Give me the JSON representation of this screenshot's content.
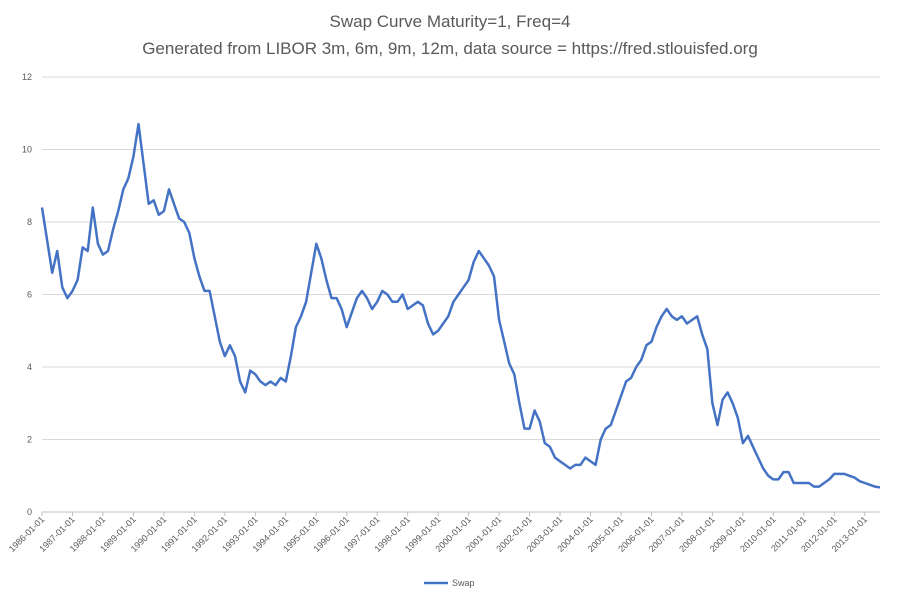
{
  "chart_data": {
    "type": "line",
    "title": "Swap Curve Maturity=1, Freq=4",
    "subtitle": "Generated from LIBOR 3m, 6m, 9m, 12m, data source = https://fred.stlouisfed.org",
    "xlabel": "",
    "ylabel": "",
    "ylim": [
      0,
      12
    ],
    "yticks": [
      0,
      2,
      4,
      6,
      8,
      10,
      12
    ],
    "x_ticks": [
      "1986-01-01",
      "1987-01-01",
      "1988-01-01",
      "1989-01-01",
      "1990-01-01",
      "1991-01-01",
      "1992-01-01",
      "1993-01-01",
      "1994-01-01",
      "1995-01-01",
      "1996-01-01",
      "1997-01-01",
      "1998-01-01",
      "1999-01-01",
      "2000-01-01",
      "2001-01-01",
      "2002-01-01",
      "2003-01-01",
      "2004-01-01",
      "2005-01-01",
      "2006-01-01",
      "2007-01-01",
      "2008-01-01",
      "2009-01-01",
      "2010-01-01",
      "2011-01-01",
      "2012-01-01",
      "2013-01-01"
    ],
    "xlim": [
      "1986-01-01",
      "2013-07-01"
    ],
    "grid": "horizontal",
    "legend_position": "bottom",
    "series": [
      {
        "name": "Swap",
        "color": "#4472C4",
        "points": [
          [
            "1986-01-01",
            8.4
          ],
          [
            "1986-03-01",
            7.5
          ],
          [
            "1986-05-01",
            6.6
          ],
          [
            "1986-07-01",
            7.2
          ],
          [
            "1986-09-01",
            6.2
          ],
          [
            "1986-11-01",
            5.9
          ],
          [
            "1987-01-01",
            6.1
          ],
          [
            "1987-03-01",
            6.4
          ],
          [
            "1987-05-01",
            7.3
          ],
          [
            "1987-07-01",
            7.2
          ],
          [
            "1987-09-01",
            8.4
          ],
          [
            "1987-11-01",
            7.4
          ],
          [
            "1988-01-01",
            7.1
          ],
          [
            "1988-03-01",
            7.2
          ],
          [
            "1988-05-01",
            7.8
          ],
          [
            "1988-07-01",
            8.3
          ],
          [
            "1988-09-01",
            8.9
          ],
          [
            "1988-11-01",
            9.2
          ],
          [
            "1989-01-01",
            9.8
          ],
          [
            "1989-03-01",
            10.7
          ],
          [
            "1989-05-01",
            9.6
          ],
          [
            "1989-07-01",
            8.5
          ],
          [
            "1989-09-01",
            8.6
          ],
          [
            "1989-11-01",
            8.2
          ],
          [
            "1990-01-01",
            8.3
          ],
          [
            "1990-03-01",
            8.9
          ],
          [
            "1990-05-01",
            8.5
          ],
          [
            "1990-07-01",
            8.1
          ],
          [
            "1990-09-01",
            8.0
          ],
          [
            "1990-11-01",
            7.7
          ],
          [
            "1991-01-01",
            7.0
          ],
          [
            "1991-03-01",
            6.5
          ],
          [
            "1991-05-01",
            6.1
          ],
          [
            "1991-07-01",
            6.1
          ],
          [
            "1991-09-01",
            5.4
          ],
          [
            "1991-11-01",
            4.7
          ],
          [
            "1992-01-01",
            4.3
          ],
          [
            "1992-03-01",
            4.6
          ],
          [
            "1992-05-01",
            4.3
          ],
          [
            "1992-07-01",
            3.6
          ],
          [
            "1992-09-01",
            3.3
          ],
          [
            "1992-11-01",
            3.9
          ],
          [
            "1993-01-01",
            3.8
          ],
          [
            "1993-03-01",
            3.6
          ],
          [
            "1993-05-01",
            3.5
          ],
          [
            "1993-07-01",
            3.6
          ],
          [
            "1993-09-01",
            3.5
          ],
          [
            "1993-11-01",
            3.7
          ],
          [
            "1994-01-01",
            3.6
          ],
          [
            "1994-03-01",
            4.3
          ],
          [
            "1994-05-01",
            5.1
          ],
          [
            "1994-07-01",
            5.4
          ],
          [
            "1994-09-01",
            5.8
          ],
          [
            "1994-11-01",
            6.6
          ],
          [
            "1995-01-01",
            7.4
          ],
          [
            "1995-03-01",
            7.0
          ],
          [
            "1995-05-01",
            6.4
          ],
          [
            "1995-07-01",
            5.9
          ],
          [
            "1995-09-01",
            5.9
          ],
          [
            "1995-11-01",
            5.6
          ],
          [
            "1996-01-01",
            5.1
          ],
          [
            "1996-03-01",
            5.5
          ],
          [
            "1996-05-01",
            5.9
          ],
          [
            "1996-07-01",
            6.1
          ],
          [
            "1996-09-01",
            5.9
          ],
          [
            "1996-11-01",
            5.6
          ],
          [
            "1997-01-01",
            5.8
          ],
          [
            "1997-03-01",
            6.1
          ],
          [
            "1997-05-01",
            6.0
          ],
          [
            "1997-07-01",
            5.8
          ],
          [
            "1997-09-01",
            5.8
          ],
          [
            "1997-11-01",
            6.0
          ],
          [
            "1998-01-01",
            5.6
          ],
          [
            "1998-03-01",
            5.7
          ],
          [
            "1998-05-01",
            5.8
          ],
          [
            "1998-07-01",
            5.7
          ],
          [
            "1998-09-01",
            5.2
          ],
          [
            "1998-11-01",
            4.9
          ],
          [
            "1999-01-01",
            5.0
          ],
          [
            "1999-03-01",
            5.2
          ],
          [
            "1999-05-01",
            5.4
          ],
          [
            "1999-07-01",
            5.8
          ],
          [
            "1999-09-01",
            6.0
          ],
          [
            "1999-11-01",
            6.2
          ],
          [
            "2000-01-01",
            6.4
          ],
          [
            "2000-03-01",
            6.9
          ],
          [
            "2000-05-01",
            7.2
          ],
          [
            "2000-07-01",
            7.0
          ],
          [
            "2000-09-01",
            6.8
          ],
          [
            "2000-11-01",
            6.5
          ],
          [
            "2001-01-01",
            5.3
          ],
          [
            "2001-03-01",
            4.7
          ],
          [
            "2001-05-01",
            4.1
          ],
          [
            "2001-07-01",
            3.8
          ],
          [
            "2001-09-01",
            3.0
          ],
          [
            "2001-11-01",
            2.3
          ],
          [
            "2002-01-01",
            2.3
          ],
          [
            "2002-03-01",
            2.8
          ],
          [
            "2002-05-01",
            2.5
          ],
          [
            "2002-07-01",
            1.9
          ],
          [
            "2002-09-01",
            1.8
          ],
          [
            "2002-11-01",
            1.5
          ],
          [
            "2003-01-01",
            1.4
          ],
          [
            "2003-03-01",
            1.3
          ],
          [
            "2003-05-01",
            1.2
          ],
          [
            "2003-07-01",
            1.3
          ],
          [
            "2003-09-01",
            1.3
          ],
          [
            "2003-11-01",
            1.5
          ],
          [
            "2004-01-01",
            1.4
          ],
          [
            "2004-03-01",
            1.3
          ],
          [
            "2004-05-01",
            2.0
          ],
          [
            "2004-07-01",
            2.3
          ],
          [
            "2004-09-01",
            2.4
          ],
          [
            "2004-11-01",
            2.8
          ],
          [
            "2005-01-01",
            3.2
          ],
          [
            "2005-03-01",
            3.6
          ],
          [
            "2005-05-01",
            3.7
          ],
          [
            "2005-07-01",
            4.0
          ],
          [
            "2005-09-01",
            4.2
          ],
          [
            "2005-11-01",
            4.6
          ],
          [
            "2006-01-01",
            4.7
          ],
          [
            "2006-03-01",
            5.1
          ],
          [
            "2006-05-01",
            5.4
          ],
          [
            "2006-07-01",
            5.6
          ],
          [
            "2006-09-01",
            5.4
          ],
          [
            "2006-11-01",
            5.3
          ],
          [
            "2007-01-01",
            5.4
          ],
          [
            "2007-03-01",
            5.2
          ],
          [
            "2007-05-01",
            5.3
          ],
          [
            "2007-07-01",
            5.4
          ],
          [
            "2007-09-01",
            4.9
          ],
          [
            "2007-11-01",
            4.5
          ],
          [
            "2008-01-01",
            3.0
          ],
          [
            "2008-03-01",
            2.4
          ],
          [
            "2008-05-01",
            3.1
          ],
          [
            "2008-07-01",
            3.3
          ],
          [
            "2008-09-01",
            3.0
          ],
          [
            "2008-11-01",
            2.6
          ],
          [
            "2009-01-01",
            1.9
          ],
          [
            "2009-03-01",
            2.1
          ],
          [
            "2009-05-01",
            1.8
          ],
          [
            "2009-07-01",
            1.5
          ],
          [
            "2009-09-01",
            1.2
          ],
          [
            "2009-11-01",
            1.0
          ],
          [
            "2010-01-01",
            0.9
          ],
          [
            "2010-03-01",
            0.9
          ],
          [
            "2010-05-01",
            1.1
          ],
          [
            "2010-07-01",
            1.1
          ],
          [
            "2010-09-01",
            0.8
          ],
          [
            "2010-11-01",
            0.8
          ],
          [
            "2011-01-01",
            0.8
          ],
          [
            "2011-03-01",
            0.8
          ],
          [
            "2011-05-01",
            0.7
          ],
          [
            "2011-07-01",
            0.7
          ],
          [
            "2011-09-01",
            0.8
          ],
          [
            "2011-11-01",
            0.9
          ],
          [
            "2012-01-01",
            1.05
          ],
          [
            "2012-03-01",
            1.05
          ],
          [
            "2012-05-01",
            1.05
          ],
          [
            "2012-07-01",
            1.0
          ],
          [
            "2012-09-01",
            0.95
          ],
          [
            "2012-11-01",
            0.85
          ],
          [
            "2013-01-01",
            0.8
          ],
          [
            "2013-03-01",
            0.75
          ],
          [
            "2013-05-01",
            0.7
          ],
          [
            "2013-07-01",
            0.68
          ]
        ]
      }
    ]
  }
}
